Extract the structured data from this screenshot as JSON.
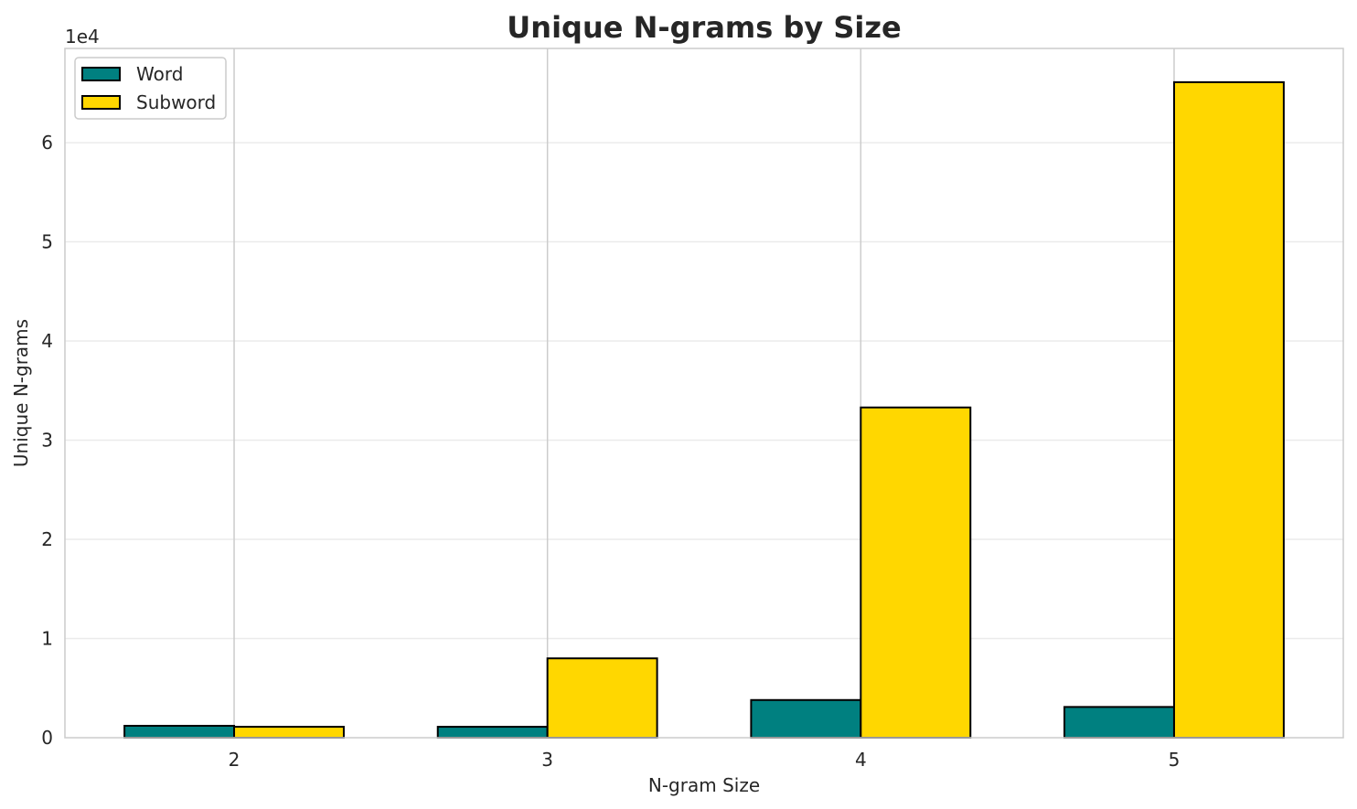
{
  "chart_data": {
    "type": "bar",
    "title": "Unique N-grams by Size",
    "xlabel": "N-gram Size",
    "ylabel": "Unique N-grams",
    "y_offset_text": "1e4",
    "categories": [
      "2",
      "3",
      "4",
      "5"
    ],
    "series": [
      {
        "name": "Word",
        "color": "#008080",
        "values": [
          1200,
          1100,
          3800,
          3100
        ]
      },
      {
        "name": "Subword",
        "color": "#FFD700",
        "values": [
          1100,
          8000,
          33300,
          66100
        ]
      }
    ],
    "yticks": [
      0,
      10000,
      20000,
      30000,
      40000,
      50000,
      60000
    ],
    "ytick_labels": [
      "0",
      "1",
      "2",
      "3",
      "4",
      "5",
      "6"
    ],
    "ylim": [
      0,
      69500
    ],
    "grid": true,
    "legend_position": "top-left"
  }
}
